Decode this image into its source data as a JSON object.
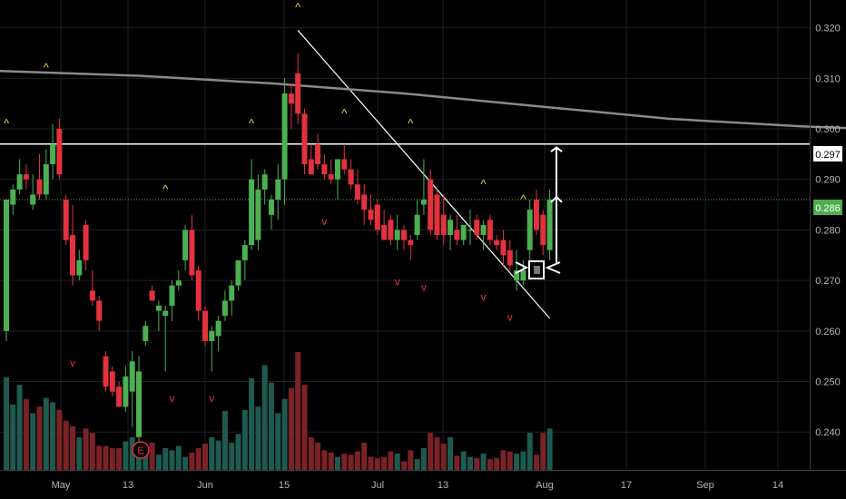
{
  "chart_data": {
    "type": "candlestick",
    "ylim": [
      0.2325,
      0.3255
    ],
    "y_ticks": [
      "0.320",
      "0.310",
      "0.300",
      "0.290",
      "0.280",
      "0.270",
      "0.260",
      "0.250",
      "0.240"
    ],
    "x_ticks": [
      "May",
      "13",
      "Jun",
      "15",
      "Jul",
      "13",
      "Aug",
      "17",
      "Sep",
      "14"
    ],
    "price_labels": [
      {
        "text": "0.297",
        "value": 0.297,
        "style": "resistance"
      },
      {
        "text": "0.286",
        "value": 0.286,
        "style": "last"
      }
    ],
    "earnings_marker": "E",
    "candles": [
      [
        0.26,
        0.286,
        0.258,
        0.286
      ],
      [
        0.285,
        0.289,
        0.283,
        0.288
      ],
      [
        0.288,
        0.294,
        0.287,
        0.291
      ],
      [
        0.291,
        0.293,
        0.288,
        0.29
      ],
      [
        0.285,
        0.291,
        0.284,
        0.287
      ],
      [
        0.29,
        0.295,
        0.286,
        0.287
      ],
      [
        0.287,
        0.296,
        0.286,
        0.293
      ],
      [
        0.293,
        0.301,
        0.29,
        0.297
      ],
      [
        0.3,
        0.302,
        0.29,
        0.291
      ],
      [
        0.286,
        0.287,
        0.277,
        0.278
      ],
      [
        0.279,
        0.285,
        0.269,
        0.271
      ],
      [
        0.271,
        0.276,
        0.27,
        0.274
      ],
      [
        0.281,
        0.282,
        0.272,
        0.274
      ],
      [
        0.268,
        0.272,
        0.265,
        0.266
      ],
      [
        0.266,
        0.267,
        0.26,
        0.262
      ],
      [
        0.255,
        0.256,
        0.248,
        0.249
      ],
      [
        0.252,
        0.253,
        0.247,
        0.248
      ],
      [
        0.249,
        0.25,
        0.245,
        0.245
      ],
      [
        0.245,
        0.253,
        0.244,
        0.251
      ],
      [
        0.248,
        0.256,
        0.241,
        0.254
      ],
      [
        0.239,
        0.255,
        0.238,
        0.252
      ],
      [
        0.258,
        0.262,
        0.257,
        0.261
      ],
      [
        0.268,
        0.269,
        0.266,
        0.266
      ],
      [
        0.264,
        0.266,
        0.26,
        0.265
      ],
      [
        0.263,
        0.265,
        0.252,
        0.264
      ],
      [
        0.265,
        0.27,
        0.262,
        0.269
      ],
      [
        0.269,
        0.272,
        0.268,
        0.27
      ],
      [
        0.274,
        0.281,
        0.272,
        0.28
      ],
      [
        0.28,
        0.283,
        0.27,
        0.271
      ],
      [
        0.272,
        0.273,
        0.262,
        0.264
      ],
      [
        0.264,
        0.265,
        0.257,
        0.258
      ],
      [
        0.258,
        0.261,
        0.252,
        0.26
      ],
      [
        0.259,
        0.263,
        0.256,
        0.262
      ],
      [
        0.263,
        0.268,
        0.262,
        0.266
      ],
      [
        0.266,
        0.27,
        0.263,
        0.269
      ],
      [
        0.269,
        0.274,
        0.268,
        0.274
      ],
      [
        0.274,
        0.278,
        0.27,
        0.277
      ],
      [
        0.277,
        0.294,
        0.276,
        0.29
      ],
      [
        0.278,
        0.291,
        0.276,
        0.288
      ],
      [
        0.288,
        0.292,
        0.285,
        0.291
      ],
      [
        0.283,
        0.287,
        0.28,
        0.286
      ],
      [
        0.286,
        0.293,
        0.282,
        0.29
      ],
      [
        0.29,
        0.31,
        0.285,
        0.307
      ],
      [
        0.307,
        0.309,
        0.3,
        0.305
      ],
      [
        0.311,
        0.315,
        0.301,
        0.303
      ],
      [
        0.303,
        0.304,
        0.291,
        0.293
      ],
      [
        0.294,
        0.297,
        0.291,
        0.291
      ],
      [
        0.297,
        0.299,
        0.292,
        0.293
      ],
      [
        0.293,
        0.295,
        0.29,
        0.291
      ],
      [
        0.291,
        0.294,
        0.289,
        0.29
      ],
      [
        0.29,
        0.294,
        0.286,
        0.294
      ],
      [
        0.294,
        0.297,
        0.291,
        0.292
      ],
      [
        0.292,
        0.294,
        0.288,
        0.289
      ],
      [
        0.289,
        0.292,
        0.285,
        0.286
      ],
      [
        0.287,
        0.289,
        0.281,
        0.284
      ],
      [
        0.284,
        0.287,
        0.281,
        0.282
      ],
      [
        0.285,
        0.286,
        0.279,
        0.28
      ],
      [
        0.281,
        0.284,
        0.278,
        0.278
      ],
      [
        0.282,
        0.283,
        0.277,
        0.278
      ],
      [
        0.278,
        0.283,
        0.276,
        0.28
      ],
      [
        0.28,
        0.281,
        0.276,
        0.278
      ],
      [
        0.278,
        0.279,
        0.274,
        0.277
      ],
      [
        0.279,
        0.286,
        0.278,
        0.283
      ],
      [
        0.285,
        0.294,
        0.283,
        0.286
      ],
      [
        0.29,
        0.292,
        0.279,
        0.28
      ],
      [
        0.287,
        0.288,
        0.278,
        0.279
      ],
      [
        0.283,
        0.287,
        0.277,
        0.279
      ],
      [
        0.279,
        0.283,
        0.276,
        0.282
      ],
      [
        0.28,
        0.283,
        0.277,
        0.278
      ],
      [
        0.278,
        0.281,
        0.277,
        0.281
      ],
      [
        0.28,
        0.284,
        0.277,
        0.28
      ],
      [
        0.282,
        0.283,
        0.278,
        0.279
      ],
      [
        0.279,
        0.282,
        0.276,
        0.281
      ],
      [
        0.282,
        0.283,
        0.277,
        0.278
      ],
      [
        0.278,
        0.279,
        0.276,
        0.277
      ],
      [
        0.278,
        0.28,
        0.273,
        0.275
      ],
      [
        0.276,
        0.278,
        0.272,
        0.273
      ],
      [
        0.27,
        0.276,
        0.268,
        0.272
      ],
      [
        0.27,
        0.274,
        0.269,
        0.272
      ],
      [
        0.276,
        0.286,
        0.274,
        0.284
      ],
      [
        0.286,
        0.288,
        0.279,
        0.28
      ],
      [
        0.283,
        0.284,
        0.275,
        0.277
      ],
      [
        0.276,
        0.288,
        0.274,
        0.286
      ]
    ],
    "volume": [
      85,
      60,
      78,
      65,
      52,
      58,
      66,
      62,
      55,
      45,
      40,
      30,
      38,
      34,
      22,
      22,
      20,
      20,
      26,
      30,
      22,
      18,
      25,
      14,
      20,
      18,
      22,
      12,
      16,
      20,
      24,
      30,
      27,
      54,
      25,
      33,
      55,
      84,
      58,
      96,
      80,
      52,
      65,
      75,
      108,
      78,
      30,
      25,
      18,
      16,
      12,
      15,
      14,
      17,
      25,
      12,
      11,
      12,
      17,
      15,
      8,
      18,
      10,
      20,
      34,
      30,
      24,
      30,
      13,
      17,
      12,
      11,
      15,
      10,
      11,
      18,
      17,
      15,
      17,
      34,
      14,
      34,
      38
    ],
    "moving_average": [
      [
        -2,
        0.3115
      ],
      [
        20,
        0.3105
      ],
      [
        40,
        0.309
      ],
      [
        60,
        0.307
      ],
      [
        80,
        0.3045
      ],
      [
        100,
        0.302
      ],
      [
        120,
        0.3005
      ],
      [
        130,
        0.3
      ],
      [
        140,
        0.2998
      ],
      [
        160,
        0.299
      ],
      [
        175,
        0.2978
      ],
      [
        190,
        0.2968
      ],
      [
        205,
        0.2962
      ],
      [
        214,
        0.296
      ]
    ],
    "signals_up": [
      [
        0,
        0.301
      ],
      [
        6,
        0.312
      ],
      [
        24,
        0.288
      ],
      [
        37,
        0.301
      ],
      [
        44,
        0.324
      ],
      [
        51,
        0.303
      ],
      [
        61,
        0.301
      ],
      [
        72,
        0.289
      ],
      [
        78,
        0.286
      ]
    ],
    "signals_down": [
      [
        10,
        0.253
      ],
      [
        25,
        0.246
      ],
      [
        31,
        0.246
      ],
      [
        48,
        0.281
      ],
      [
        59,
        0.269
      ],
      [
        63,
        0.268
      ],
      [
        72,
        0.266
      ],
      [
        76,
        0.262
      ]
    ],
    "trendline": [
      [
        44,
        0.3195
      ],
      [
        82,
        0.2625
      ]
    ],
    "resistance": 0.297,
    "last_price": 0.286
  }
}
